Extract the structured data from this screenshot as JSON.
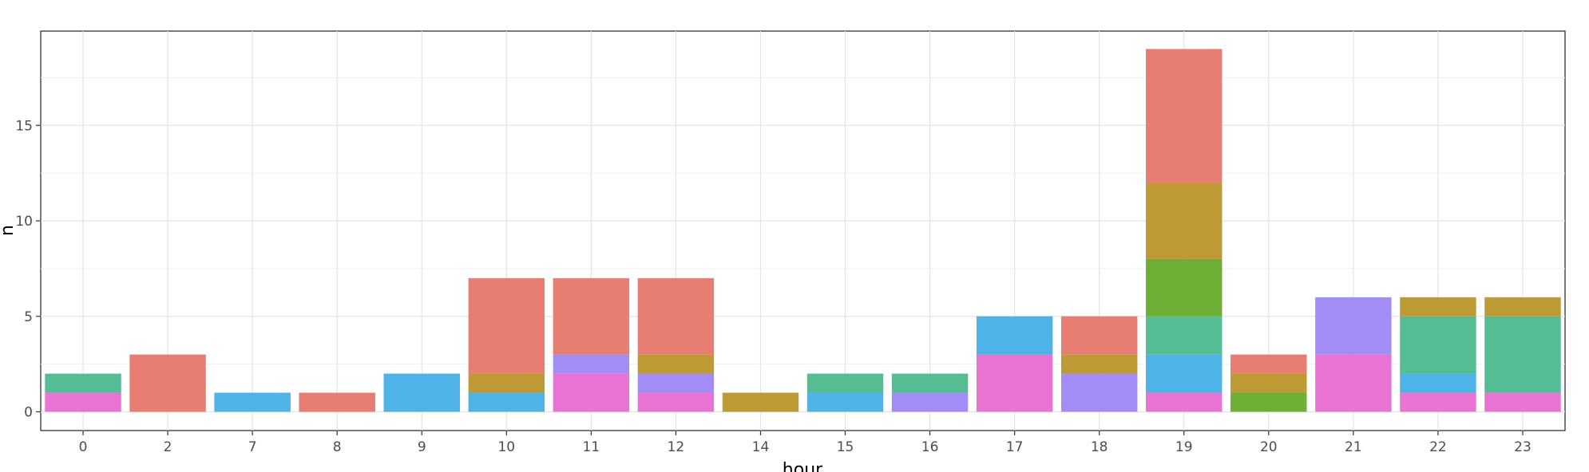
{
  "chart_data": {
    "type": "bar",
    "stacked": true,
    "xlabel": "hour",
    "ylabel": "n",
    "ylim": [
      0,
      20
    ],
    "yticks": [
      0,
      5,
      10,
      15
    ],
    "grid": true,
    "legend": "none",
    "categories": [
      "0",
      "2",
      "7",
      "8",
      "9",
      "10",
      "11",
      "12",
      "14",
      "15",
      "16",
      "17",
      "18",
      "19",
      "20",
      "21",
      "22",
      "23"
    ],
    "series": [
      {
        "color": "#E87D72",
        "values": [
          0,
          3,
          0,
          1,
          0,
          5,
          4,
          4,
          0,
          0,
          0,
          0,
          2,
          7,
          1,
          0,
          0,
          0
        ]
      },
      {
        "color": "#BD9A33",
        "values": [
          0,
          0,
          0,
          0,
          0,
          1,
          0,
          1,
          1,
          0,
          0,
          0,
          1,
          4,
          1,
          0,
          1,
          1
        ]
      },
      {
        "color": "#6DAE35",
        "values": [
          0,
          0,
          0,
          0,
          0,
          0,
          0,
          0,
          0,
          0,
          0,
          0,
          0,
          3,
          1,
          0,
          0,
          0
        ]
      },
      {
        "color": "#55BD94",
        "values": [
          1,
          0,
          0,
          0,
          0,
          0,
          0,
          0,
          0,
          1,
          1,
          0,
          0,
          2,
          0,
          0,
          3,
          4
        ]
      },
      {
        "color": "#4EB3E6",
        "values": [
          0,
          0,
          1,
          0,
          2,
          1,
          0,
          0,
          0,
          1,
          0,
          2,
          0,
          2,
          0,
          0,
          1,
          0
        ]
      },
      {
        "color": "#A28CF6",
        "values": [
          0,
          0,
          0,
          0,
          0,
          0,
          1,
          1,
          0,
          0,
          1,
          0,
          2,
          0,
          0,
          3,
          0,
          0
        ]
      },
      {
        "color": "#E873D3",
        "values": [
          1,
          0,
          0,
          0,
          0,
          0,
          2,
          1,
          0,
          0,
          0,
          3,
          0,
          1,
          0,
          3,
          1,
          1
        ]
      }
    ]
  }
}
